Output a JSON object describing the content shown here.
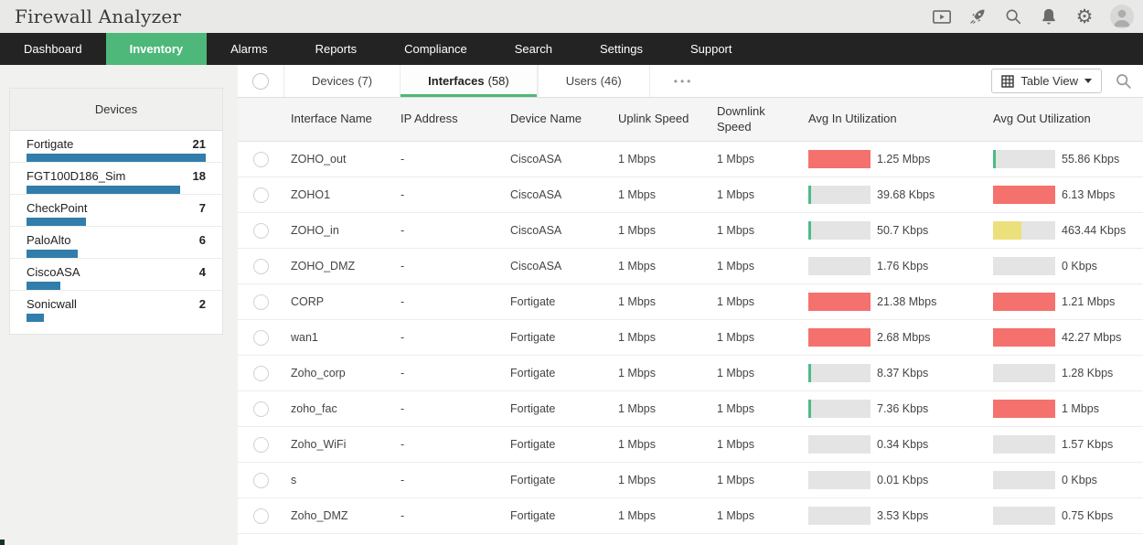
{
  "app": {
    "title": "Firewall Analyzer"
  },
  "header": {
    "icons": [
      "presentation-icon",
      "rocket-icon",
      "search-icon",
      "bell-icon",
      "gear-icon",
      "avatar"
    ]
  },
  "nav": {
    "items": [
      {
        "label": "Dashboard",
        "active": false
      },
      {
        "label": "Inventory",
        "active": true
      },
      {
        "label": "Alarms",
        "active": false
      },
      {
        "label": "Reports",
        "active": false
      },
      {
        "label": "Compliance",
        "active": false
      },
      {
        "label": "Search",
        "active": false
      },
      {
        "label": "Settings",
        "active": false
      },
      {
        "label": "Support",
        "active": false
      }
    ]
  },
  "sidebar": {
    "title": "Devices",
    "items": [
      {
        "name": "Fortigate",
        "count": 21
      },
      {
        "name": "FGT100D186_Sim",
        "count": 18
      },
      {
        "name": "CheckPoint",
        "count": 7
      },
      {
        "name": "PaloAlto",
        "count": 6
      },
      {
        "name": "CiscoASA",
        "count": 4
      },
      {
        "name": "Sonicwall",
        "count": 2
      }
    ]
  },
  "toolbar": {
    "tabs": [
      {
        "label": "Devices",
        "count": "(7)",
        "active": false
      },
      {
        "label": "Interfaces",
        "count": "(58)",
        "active": true
      },
      {
        "label": "Users",
        "count": "(46)",
        "active": false
      }
    ],
    "more_label": "•••",
    "view_button_label": "Table View"
  },
  "table": {
    "columns": [
      "Interface Name",
      "IP Address",
      "Device Name",
      "Uplink Speed",
      "Downlink Speed",
      "Avg In Utilization",
      "Avg Out Utilization"
    ],
    "rows": [
      {
        "interface": "ZOHO_out",
        "ip": "-",
        "device": "CiscoASA",
        "uplink": "1 Mbps",
        "downlink": "1 Mbps",
        "avg_in": {
          "label": "1.25 Mbps",
          "pct": 100,
          "color": "red"
        },
        "avg_out": {
          "label": "55.86 Kbps",
          "pct": 5,
          "color": "green"
        }
      },
      {
        "interface": "ZOHO1",
        "ip": "-",
        "device": "CiscoASA",
        "uplink": "1 Mbps",
        "downlink": "1 Mbps",
        "avg_in": {
          "label": "39.68 Kbps",
          "pct": 4,
          "color": "green"
        },
        "avg_out": {
          "label": "6.13 Mbps",
          "pct": 100,
          "color": "red"
        }
      },
      {
        "interface": "ZOHO_in",
        "ip": "-",
        "device": "CiscoASA",
        "uplink": "1 Mbps",
        "downlink": "1 Mbps",
        "avg_in": {
          "label": "50.7 Kbps",
          "pct": 5,
          "color": "green"
        },
        "avg_out": {
          "label": "463.44 Kbps",
          "pct": 46,
          "color": "yellow"
        }
      },
      {
        "interface": "ZOHO_DMZ",
        "ip": "-",
        "device": "CiscoASA",
        "uplink": "1 Mbps",
        "downlink": "1 Mbps",
        "avg_in": {
          "label": "1.76 Kbps",
          "pct": 0,
          "color": "none"
        },
        "avg_out": {
          "label": "0 Kbps",
          "pct": 0,
          "color": "none"
        }
      },
      {
        "interface": "CORP",
        "ip": "-",
        "device": "Fortigate",
        "uplink": "1 Mbps",
        "downlink": "1 Mbps",
        "avg_in": {
          "label": "21.38 Mbps",
          "pct": 100,
          "color": "red"
        },
        "avg_out": {
          "label": "1.21 Mbps",
          "pct": 100,
          "color": "red"
        }
      },
      {
        "interface": "wan1",
        "ip": "-",
        "device": "Fortigate",
        "uplink": "1 Mbps",
        "downlink": "1 Mbps",
        "avg_in": {
          "label": "2.68 Mbps",
          "pct": 100,
          "color": "red"
        },
        "avg_out": {
          "label": "42.27 Mbps",
          "pct": 100,
          "color": "red"
        }
      },
      {
        "interface": "Zoho_corp",
        "ip": "-",
        "device": "Fortigate",
        "uplink": "1 Mbps",
        "downlink": "1 Mbps",
        "avg_in": {
          "label": "8.37 Kbps",
          "pct": 2,
          "color": "green"
        },
        "avg_out": {
          "label": "1.28 Kbps",
          "pct": 0,
          "color": "none"
        }
      },
      {
        "interface": "zoho_fac",
        "ip": "-",
        "device": "Fortigate",
        "uplink": "1 Mbps",
        "downlink": "1 Mbps",
        "avg_in": {
          "label": "7.36 Kbps",
          "pct": 2,
          "color": "green"
        },
        "avg_out": {
          "label": "1 Mbps",
          "pct": 100,
          "color": "red"
        }
      },
      {
        "interface": "Zoho_WiFi",
        "ip": "-",
        "device": "Fortigate",
        "uplink": "1 Mbps",
        "downlink": "1 Mbps",
        "avg_in": {
          "label": "0.34 Kbps",
          "pct": 0,
          "color": "none"
        },
        "avg_out": {
          "label": "1.57 Kbps",
          "pct": 0,
          "color": "none"
        }
      },
      {
        "interface": "s",
        "ip": "-",
        "device": "Fortigate",
        "uplink": "1 Mbps",
        "downlink": "1 Mbps",
        "avg_in": {
          "label": "0.01 Kbps",
          "pct": 0,
          "color": "none"
        },
        "avg_out": {
          "label": "0 Kbps",
          "pct": 0,
          "color": "none"
        }
      },
      {
        "interface": "Zoho_DMZ",
        "ip": "-",
        "device": "Fortigate",
        "uplink": "1 Mbps",
        "downlink": "1 Mbps",
        "avg_in": {
          "label": "3.53 Kbps",
          "pct": 0,
          "color": "none"
        },
        "avg_out": {
          "label": "0.75 Kbps",
          "pct": 0,
          "color": "none"
        }
      }
    ]
  },
  "colors": {
    "nav_green": "#4db879",
    "bar_blue": "#327dab",
    "util_red": "#f4716e",
    "util_green": "#4cbb87",
    "util_yellow": "#ebe07c",
    "util_track": "#e4e4e4"
  }
}
